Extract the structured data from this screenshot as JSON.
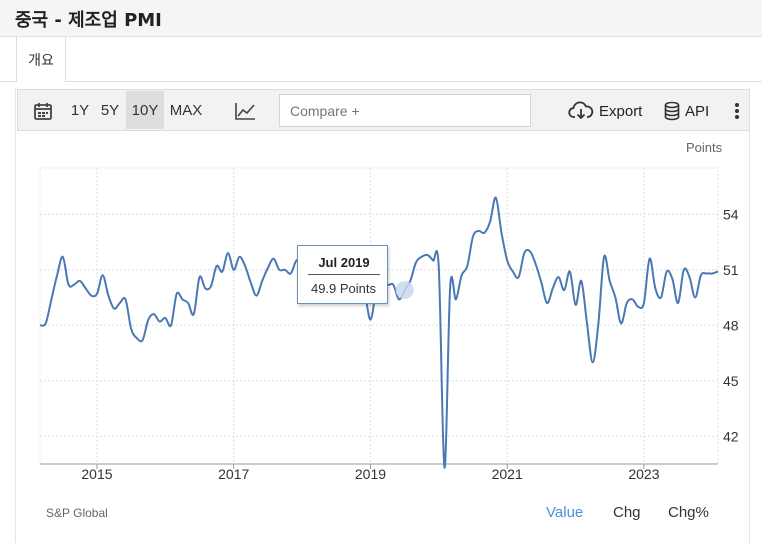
{
  "header": {
    "title": "중국 - 제조업 PMI"
  },
  "tabs": [
    {
      "label": "개요"
    }
  ],
  "toolbar": {
    "ranges": [
      {
        "label": "1Y",
        "active": false
      },
      {
        "label": "5Y",
        "active": false
      },
      {
        "label": "10Y",
        "active": true
      },
      {
        "label": "MAX",
        "active": false
      }
    ],
    "compare_placeholder": "Compare +",
    "export_label": "Export",
    "api_label": "API",
    "icons": {
      "calendar": "calendar-icon",
      "chart_type": "line-chart-icon",
      "export": "cloud-download-icon",
      "api": "database-icon",
      "menu": "more-vertical-icon"
    }
  },
  "units_label": "Points",
  "source": "S&P Global",
  "view_tabs": [
    {
      "label": "Value",
      "active": true
    },
    {
      "label": "Chg",
      "active": false
    },
    {
      "label": "Chg%",
      "active": false
    }
  ],
  "tooltip": {
    "date": "Jul 2019",
    "value": "49.9 Points"
  },
  "colors": {
    "line": "#4a78b5",
    "accent": "#4a90d9",
    "marker": "#c9d8ec"
  },
  "chart_data": {
    "type": "line",
    "title": "",
    "xlabel": "",
    "ylabel": "Points",
    "x_ticks": [
      "2015",
      "2017",
      "2019",
      "2021",
      "2023"
    ],
    "y_ticks": [
      42,
      45,
      48,
      51,
      54
    ],
    "ylim": [
      40.5,
      56.5
    ],
    "xlim": [
      "2014-03",
      "2024-02"
    ],
    "grid": true,
    "legend": "none",
    "highlight": {
      "x": "2019-07",
      "y": 49.9
    },
    "series": [
      {
        "x": [
          "2014-03",
          "2014-04",
          "2014-05",
          "2014-06",
          "2014-07",
          "2014-08",
          "2014-09",
          "2014-10",
          "2014-11",
          "2014-12",
          "2015-01",
          "2015-02",
          "2015-03",
          "2015-04",
          "2015-05",
          "2015-06",
          "2015-07",
          "2015-08",
          "2015-09",
          "2015-10",
          "2015-11",
          "2015-12",
          "2016-01",
          "2016-02",
          "2016-03",
          "2016-04",
          "2016-05",
          "2016-06",
          "2016-07",
          "2016-08",
          "2016-09",
          "2016-10",
          "2016-11",
          "2016-12",
          "2017-01",
          "2017-02",
          "2017-03",
          "2017-04",
          "2017-05",
          "2017-06",
          "2017-07",
          "2017-08",
          "2017-09",
          "2017-10",
          "2017-11",
          "2017-12",
          "2018-01",
          "2018-02",
          "2018-03",
          "2018-04",
          "2018-05",
          "2018-06",
          "2018-07",
          "2018-08",
          "2018-09",
          "2018-10",
          "2018-11",
          "2018-12",
          "2019-01",
          "2019-02",
          "2019-03",
          "2019-04",
          "2019-05",
          "2019-06",
          "2019-07",
          "2019-08",
          "2019-09",
          "2019-10",
          "2019-11",
          "2019-12",
          "2020-01",
          "2020-02",
          "2020-03",
          "2020-04",
          "2020-05",
          "2020-06",
          "2020-07",
          "2020-08",
          "2020-09",
          "2020-10",
          "2020-11",
          "2020-12",
          "2021-01",
          "2021-02",
          "2021-03",
          "2021-04",
          "2021-05",
          "2021-06",
          "2021-07",
          "2021-08",
          "2021-09",
          "2021-10",
          "2021-11",
          "2021-12",
          "2022-01",
          "2022-02",
          "2022-03",
          "2022-04",
          "2022-05",
          "2022-06",
          "2022-07",
          "2022-08",
          "2022-09",
          "2022-10",
          "2022-11",
          "2022-12",
          "2023-01",
          "2023-02",
          "2023-03",
          "2023-04",
          "2023-05",
          "2023-06",
          "2023-07",
          "2023-08",
          "2023-09",
          "2023-10",
          "2023-11",
          "2023-12",
          "2024-01",
          "2024-02"
        ],
        "values": [
          48.0,
          48.1,
          49.4,
          50.7,
          51.7,
          50.2,
          50.2,
          50.4,
          50.0,
          49.6,
          49.7,
          50.7,
          49.6,
          48.9,
          49.2,
          49.4,
          47.8,
          47.3,
          47.2,
          48.3,
          48.6,
          48.2,
          48.4,
          48.0,
          49.7,
          49.4,
          49.2,
          48.6,
          50.6,
          50.0,
          50.1,
          51.2,
          50.9,
          51.9,
          51.0,
          51.7,
          51.2,
          50.3,
          49.6,
          50.4,
          51.1,
          51.6,
          51.0,
          51.0,
          50.8,
          51.5,
          51.5,
          51.6,
          51.0,
          51.1,
          51.1,
          51.0,
          50.8,
          50.6,
          50.0,
          50.1,
          50.2,
          49.7,
          48.3,
          49.9,
          50.8,
          50.2,
          50.2,
          49.4,
          49.9,
          50.4,
          51.4,
          51.7,
          51.8,
          51.5,
          51.1,
          40.3,
          50.1,
          49.4,
          50.7,
          51.2,
          52.8,
          53.1,
          53.0,
          53.6,
          54.9,
          53.0,
          51.5,
          50.9,
          50.6,
          51.9,
          52.0,
          51.3,
          50.3,
          49.2,
          50.0,
          50.6,
          49.9,
          50.9,
          49.1,
          50.4,
          48.1,
          46.0,
          48.1,
          51.7,
          50.4,
          49.5,
          48.1,
          49.2,
          49.4,
          49.0,
          49.2,
          51.6,
          50.0,
          49.5,
          50.9,
          50.5,
          49.2,
          51.0,
          50.6,
          49.5,
          50.7,
          50.8,
          50.8,
          50.9
        ]
      }
    ]
  }
}
